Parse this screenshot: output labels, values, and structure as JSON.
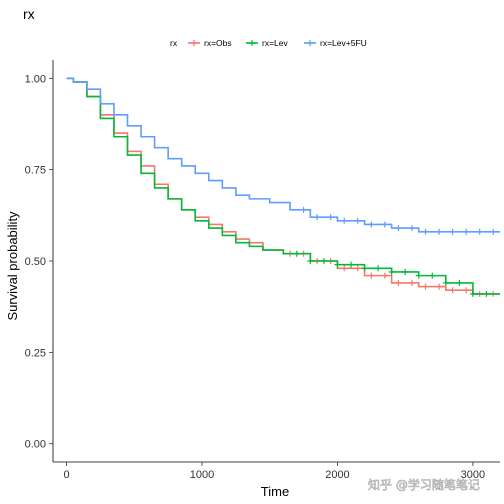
{
  "chart_data": {
    "type": "line",
    "title": "rx",
    "xlabel": "Time",
    "ylabel": "Survival probability",
    "xlim": [
      -100,
      3200
    ],
    "ylim": [
      -0.05,
      1.05
    ],
    "x_ticks": [
      0,
      1000,
      2000,
      3000
    ],
    "x_tick_labels": [
      "0",
      "1000",
      "2000",
      "3000"
    ],
    "y_ticks": [
      0.0,
      0.25,
      0.5,
      0.75,
      1.0
    ],
    "y_tick_labels": [
      "0.00",
      "0.25",
      "0.50",
      "0.75",
      "1.00"
    ],
    "grid": false,
    "legend": {
      "title": "rx",
      "position": "top"
    },
    "series": [
      {
        "name": "rx=Obs",
        "color": "#F8766D",
        "points": [
          [
            0,
            1.0
          ],
          [
            50,
            0.99
          ],
          [
            150,
            0.95
          ],
          [
            250,
            0.9
          ],
          [
            350,
            0.85
          ],
          [
            450,
            0.8
          ],
          [
            550,
            0.76
          ],
          [
            650,
            0.71
          ],
          [
            750,
            0.67
          ],
          [
            850,
            0.64
          ],
          [
            950,
            0.62
          ],
          [
            1050,
            0.6
          ],
          [
            1150,
            0.58
          ],
          [
            1250,
            0.56
          ],
          [
            1350,
            0.55
          ],
          [
            1450,
            0.53
          ],
          [
            1600,
            0.52
          ],
          [
            1800,
            0.5
          ],
          [
            2000,
            0.48
          ],
          [
            2200,
            0.46
          ],
          [
            2400,
            0.44
          ],
          [
            2600,
            0.43
          ],
          [
            2800,
            0.42
          ],
          [
            3000,
            0.41
          ],
          [
            3200,
            0.41
          ]
        ],
        "censor_x": [
          1650,
          1750,
          1850,
          1950,
          2050,
          2150,
          2250,
          2350,
          2450,
          2550,
          2650,
          2750,
          2850,
          2950,
          3050,
          3150
        ]
      },
      {
        "name": "rx=Lev",
        "color": "#00BA38",
        "points": [
          [
            0,
            1.0
          ],
          [
            50,
            0.99
          ],
          [
            150,
            0.95
          ],
          [
            250,
            0.89
          ],
          [
            350,
            0.84
          ],
          [
            450,
            0.79
          ],
          [
            550,
            0.74
          ],
          [
            650,
            0.7
          ],
          [
            750,
            0.67
          ],
          [
            850,
            0.64
          ],
          [
            950,
            0.61
          ],
          [
            1050,
            0.59
          ],
          [
            1150,
            0.57
          ],
          [
            1250,
            0.55
          ],
          [
            1350,
            0.54
          ],
          [
            1450,
            0.53
          ],
          [
            1600,
            0.52
          ],
          [
            1800,
            0.5
          ],
          [
            2000,
            0.49
          ],
          [
            2200,
            0.48
          ],
          [
            2400,
            0.47
          ],
          [
            2600,
            0.46
          ],
          [
            2800,
            0.44
          ],
          [
            3000,
            0.41
          ],
          [
            3200,
            0.41
          ]
        ],
        "censor_x": [
          1700,
          1800,
          1900,
          2000,
          2100,
          2200,
          2300,
          2400,
          2500,
          2600,
          2700,
          2800,
          2900,
          3000,
          3100
        ]
      },
      {
        "name": "rx=Lev+5FU",
        "color": "#619CFF",
        "points": [
          [
            0,
            1.0
          ],
          [
            50,
            0.99
          ],
          [
            150,
            0.97
          ],
          [
            250,
            0.93
          ],
          [
            350,
            0.9
          ],
          [
            450,
            0.87
          ],
          [
            550,
            0.84
          ],
          [
            650,
            0.81
          ],
          [
            750,
            0.78
          ],
          [
            850,
            0.76
          ],
          [
            950,
            0.74
          ],
          [
            1050,
            0.72
          ],
          [
            1150,
            0.7
          ],
          [
            1250,
            0.68
          ],
          [
            1350,
            0.67
          ],
          [
            1500,
            0.66
          ],
          [
            1650,
            0.64
          ],
          [
            1800,
            0.62
          ],
          [
            2000,
            0.61
          ],
          [
            2200,
            0.6
          ],
          [
            2400,
            0.59
          ],
          [
            2600,
            0.58
          ],
          [
            2800,
            0.58
          ],
          [
            3000,
            0.58
          ],
          [
            3200,
            0.58
          ]
        ],
        "censor_x": [
          1750,
          1850,
          1950,
          2050,
          2150,
          2250,
          2350,
          2450,
          2550,
          2650,
          2750,
          2850,
          2950,
          3050,
          3150
        ]
      }
    ]
  },
  "watermark": "知乎 @学习随笔笔记"
}
